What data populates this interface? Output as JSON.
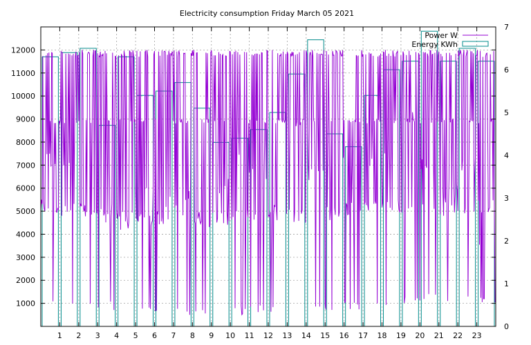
{
  "chart_data": {
    "type": "line",
    "title": "Electricity consumption Friday March 05 2021",
    "xlabel": "",
    "ylabel": "",
    "y2label": "",
    "xlim": [
      0,
      24
    ],
    "ylim": [
      0,
      13000
    ],
    "y2lim": [
      0,
      7
    ],
    "grid": true,
    "legend_position": "top-right",
    "x_ticks": [
      1,
      2,
      3,
      4,
      5,
      6,
      7,
      8,
      9,
      10,
      11,
      12,
      13,
      14,
      15,
      16,
      17,
      18,
      19,
      20,
      21,
      22,
      23
    ],
    "y_ticks": [
      1000,
      2000,
      3000,
      4000,
      5000,
      6000,
      7000,
      8000,
      9000,
      10000,
      11000,
      12000
    ],
    "y2_ticks": [
      0,
      1,
      2,
      3,
      4,
      5,
      6,
      7
    ],
    "series": [
      {
        "name": "Power W",
        "axis": "left",
        "color": "#9400d3",
        "style": "dense-switching",
        "hourly_high": [
          12000,
          12000,
          12000,
          12000,
          12000,
          12000,
          12000,
          12000,
          12000,
          12000,
          12000,
          12000,
          12000,
          12000,
          12000,
          12000,
          12000,
          12000,
          12000,
          12000,
          12000,
          12000,
          12000,
          12000
        ],
        "hourly_base": [
          5200,
          5100,
          5000,
          4800,
          4700,
          4600,
          4700,
          4600,
          4700,
          4700,
          4800,
          4900,
          4900,
          4800,
          6500,
          4900,
          5100,
          5300,
          5200,
          5200,
          5400,
          5100,
          5200,
          5200
        ],
        "hourly_low": [
          900,
          800,
          700,
          700,
          500,
          500,
          500,
          450,
          500,
          500,
          500,
          600,
          550,
          500,
          700,
          600,
          700,
          850,
          800,
          900,
          1100,
          1000,
          950,
          900
        ],
        "hourly_mid": [
          7200,
          7000,
          5000,
          5500,
          4000,
          6000,
          5500,
          5500,
          4700,
          6000,
          7200,
          6500,
          5000,
          9000,
          7000,
          7200,
          7000,
          7000,
          7500,
          9000,
          7000,
          6000,
          7000,
          3600
        ]
      },
      {
        "name": "Energy KWh",
        "axis": "right",
        "color": "#008b8b",
        "style": "steps",
        "values": [
          6.3,
          6.4,
          6.5,
          4.7,
          6.3,
          5.4,
          5.5,
          5.7,
          5.1,
          4.3,
          4.4,
          4.6,
          5.0,
          5.9,
          6.7,
          4.5,
          4.2,
          5.4,
          6.0,
          6.2,
          6.9,
          6.2,
          6.5,
          6.2
        ]
      }
    ]
  }
}
